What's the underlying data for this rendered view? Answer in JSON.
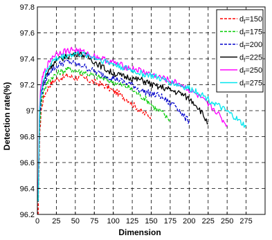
{
  "chart_data": {
    "type": "line",
    "title": "",
    "xlabel": "Dimension",
    "ylabel": "Detection rate(%)",
    "xlim": [
      0,
      300
    ],
    "ylim": [
      96.2,
      97.8
    ],
    "xticks": [
      0,
      25,
      50,
      75,
      100,
      125,
      150,
      175,
      200,
      225,
      250,
      275
    ],
    "yticks": [
      96.2,
      96.4,
      96.6,
      96.8,
      97,
      97.2,
      97.4,
      97.6,
      97.8
    ],
    "grid": "dashed",
    "legend_position": "top-right",
    "series": [
      {
        "name": "d_f=150",
        "label_main": "d",
        "label_sub": "f",
        "label_rest": "=150",
        "color": "#ff0000",
        "dash": "dashed",
        "x": [
          1,
          3,
          5,
          8,
          12,
          16,
          20,
          25,
          30,
          35,
          40,
          45,
          50,
          55,
          60,
          65,
          70,
          75,
          80,
          85,
          90,
          95,
          100,
          105,
          110,
          115,
          120,
          125,
          130,
          135,
          140,
          145,
          150
        ],
        "y": [
          96.2,
          96.8,
          97.0,
          97.1,
          97.15,
          97.2,
          97.22,
          97.24,
          97.25,
          97.26,
          97.27,
          97.26,
          97.25,
          97.26,
          97.25,
          97.24,
          97.23,
          97.22,
          97.21,
          97.2,
          97.19,
          97.17,
          97.15,
          97.14,
          97.12,
          97.1,
          97.08,
          97.05,
          97.03,
          97.0,
          96.98,
          96.97,
          96.96
        ]
      },
      {
        "name": "d_f=175",
        "label_main": "d",
        "label_sub": "f",
        "label_rest": "=175",
        "color": "#00cc00",
        "dash": "dashed",
        "x": [
          1,
          3,
          5,
          8,
          12,
          16,
          20,
          25,
          30,
          35,
          40,
          45,
          50,
          55,
          60,
          65,
          70,
          75,
          80,
          85,
          90,
          95,
          100,
          105,
          110,
          115,
          120,
          125,
          130,
          135,
          140,
          145,
          150,
          155,
          160,
          165,
          170,
          175
        ],
        "y": [
          96.3,
          96.9,
          97.05,
          97.15,
          97.2,
          97.24,
          97.26,
          97.28,
          97.3,
          97.31,
          97.32,
          97.32,
          97.31,
          97.3,
          97.3,
          97.29,
          97.28,
          97.27,
          97.26,
          97.25,
          97.24,
          97.23,
          97.22,
          97.21,
          97.2,
          97.19,
          97.18,
          97.16,
          97.14,
          97.12,
          97.1,
          97.08,
          97.05,
          97.02,
          97.0,
          96.98,
          96.95,
          96.93
        ]
      },
      {
        "name": "d_f=200",
        "label_main": "d",
        "label_sub": "f",
        "label_rest": "=200",
        "color": "#0000cc",
        "dash": "dashed",
        "x": [
          1,
          3,
          5,
          8,
          12,
          16,
          20,
          25,
          30,
          35,
          40,
          45,
          50,
          55,
          60,
          65,
          70,
          75,
          80,
          85,
          90,
          95,
          100,
          105,
          110,
          115,
          120,
          125,
          130,
          135,
          140,
          145,
          150,
          155,
          160,
          165,
          170,
          175,
          180,
          185,
          190,
          195,
          200
        ],
        "y": [
          96.3,
          96.95,
          97.1,
          97.2,
          97.25,
          97.3,
          97.32,
          97.34,
          97.36,
          97.37,
          97.38,
          97.37,
          97.36,
          97.35,
          97.35,
          97.33,
          97.32,
          97.3,
          97.29,
          97.28,
          97.27,
          97.26,
          97.25,
          97.24,
          97.23,
          97.22,
          97.21,
          97.2,
          97.18,
          97.16,
          97.15,
          97.14,
          97.13,
          97.12,
          97.12,
          97.1,
          97.08,
          97.05,
          97.06,
          97.02,
          96.98,
          96.94,
          96.92
        ]
      },
      {
        "name": "d_f=225",
        "label_main": "d",
        "label_sub": "f",
        "label_rest": "=225",
        "color": "#000000",
        "dash": "solid",
        "x": [
          1,
          3,
          5,
          8,
          12,
          16,
          20,
          25,
          30,
          35,
          40,
          45,
          50,
          55,
          60,
          65,
          70,
          75,
          80,
          85,
          90,
          95,
          100,
          105,
          110,
          115,
          120,
          125,
          130,
          135,
          140,
          145,
          150,
          155,
          160,
          165,
          170,
          175,
          180,
          185,
          190,
          195,
          200,
          205,
          210,
          215,
          220,
          225
        ],
        "y": [
          96.3,
          97.0,
          97.15,
          97.22,
          97.28,
          97.33,
          97.36,
          97.38,
          97.4,
          97.41,
          97.42,
          97.43,
          97.44,
          97.44,
          97.43,
          97.42,
          97.4,
          97.38,
          97.36,
          97.34,
          97.32,
          97.3,
          97.29,
          97.28,
          97.27,
          97.26,
          97.26,
          97.25,
          97.24,
          97.24,
          97.23,
          97.22,
          97.2,
          97.19,
          97.18,
          97.18,
          97.17,
          97.16,
          97.15,
          97.14,
          97.13,
          97.11,
          97.09,
          97.07,
          97.04,
          97.0,
          96.95,
          96.9
        ]
      },
      {
        "name": "d_f=250",
        "label_main": "d",
        "label_sub": "f",
        "label_rest": "=250",
        "color": "#ff00ff",
        "dash": "solid",
        "x": [
          1,
          3,
          5,
          8,
          12,
          16,
          20,
          25,
          30,
          35,
          40,
          45,
          50,
          55,
          60,
          65,
          70,
          75,
          80,
          85,
          90,
          95,
          100,
          105,
          110,
          115,
          120,
          125,
          130,
          135,
          140,
          145,
          150,
          155,
          160,
          165,
          170,
          175,
          180,
          185,
          190,
          195,
          200,
          205,
          210,
          215,
          220,
          225,
          230,
          235,
          240,
          245,
          250
        ],
        "y": [
          96.35,
          97.05,
          97.2,
          97.28,
          97.33,
          97.38,
          97.42,
          97.44,
          97.45,
          97.46,
          97.46,
          97.47,
          97.47,
          97.46,
          97.45,
          97.44,
          97.43,
          97.42,
          97.41,
          97.4,
          97.39,
          97.38,
          97.37,
          97.36,
          97.35,
          97.34,
          97.33,
          97.32,
          97.32,
          97.31,
          97.3,
          97.29,
          97.28,
          97.27,
          97.26,
          97.25,
          97.24,
          97.23,
          97.22,
          97.21,
          97.2,
          97.18,
          97.16,
          97.14,
          97.12,
          97.1,
          97.07,
          97.04,
          97.02,
          97.0,
          96.96,
          96.92,
          96.89
        ]
      },
      {
        "name": "d_f=275",
        "label_main": "d",
        "label_sub": "f",
        "label_rest": "=275",
        "color": "#00e5ee",
        "dash": "solid",
        "x": [
          1,
          3,
          5,
          8,
          12,
          16,
          20,
          25,
          30,
          35,
          40,
          45,
          50,
          55,
          60,
          65,
          70,
          75,
          80,
          85,
          90,
          95,
          100,
          105,
          110,
          115,
          120,
          125,
          130,
          135,
          140,
          145,
          150,
          155,
          160,
          165,
          170,
          175,
          180,
          185,
          190,
          195,
          200,
          205,
          210,
          215,
          220,
          225,
          230,
          235,
          240,
          245,
          250,
          255,
          260,
          265,
          270,
          275
        ],
        "y": [
          96.3,
          97.0,
          97.15,
          97.24,
          97.3,
          97.35,
          97.38,
          97.4,
          97.41,
          97.42,
          97.43,
          97.43,
          97.44,
          97.44,
          97.43,
          97.43,
          97.42,
          97.41,
          97.4,
          97.39,
          97.38,
          97.37,
          97.36,
          97.35,
          97.34,
          97.33,
          97.32,
          97.31,
          97.3,
          97.29,
          97.28,
          97.28,
          97.27,
          97.26,
          97.25,
          97.24,
          97.23,
          97.22,
          97.21,
          97.2,
          97.19,
          97.18,
          97.17,
          97.16,
          97.15,
          97.13,
          97.11,
          97.09,
          97.07,
          97.05,
          97.03,
          97.01,
          96.99,
          96.97,
          96.95,
          96.92,
          96.9,
          96.88
        ]
      }
    ]
  }
}
